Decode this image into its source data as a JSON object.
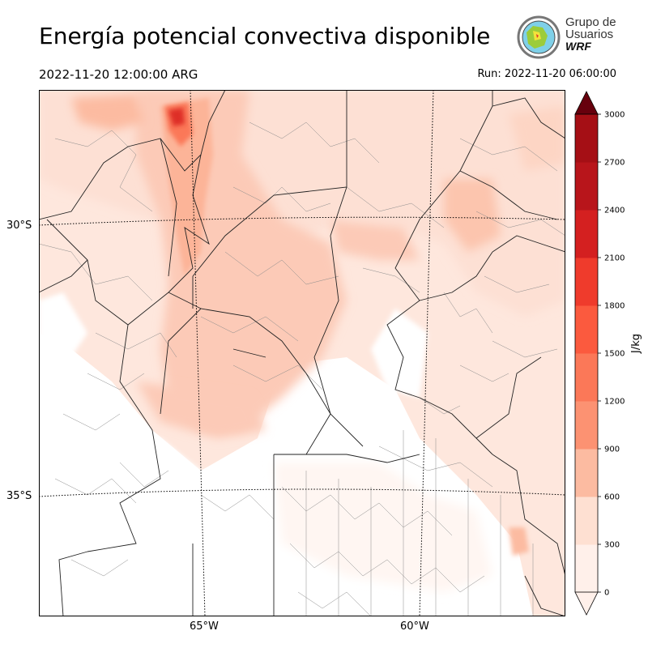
{
  "title": "Energía potencial convectiva disponible",
  "valid_time": "2022-11-20 12:00:00 ARG",
  "run_time": "Run: 2022-11-20 06:00:00",
  "logo": {
    "line1": "Grupo de",
    "line2": "Usuarios",
    "line3": "WRF"
  },
  "map": {
    "lat_labels": [
      "30°S",
      "35°S"
    ],
    "lon_labels": [
      "65°W",
      "60°W"
    ]
  },
  "colorbar": {
    "unit": "J/kg",
    "ticks": [
      "0",
      "300",
      "600",
      "900",
      "1200",
      "1500",
      "1800",
      "2100",
      "2400",
      "2700",
      "3000"
    ],
    "colors": [
      "#fff0ea",
      "#fee0d2",
      "#fcbba1",
      "#fc9272",
      "#fb7858",
      "#fb5a3e",
      "#ef3b2c",
      "#d42020",
      "#b8151b",
      "#a50f15",
      "#7d0a10"
    ],
    "extend_color": "#67000d"
  }
}
